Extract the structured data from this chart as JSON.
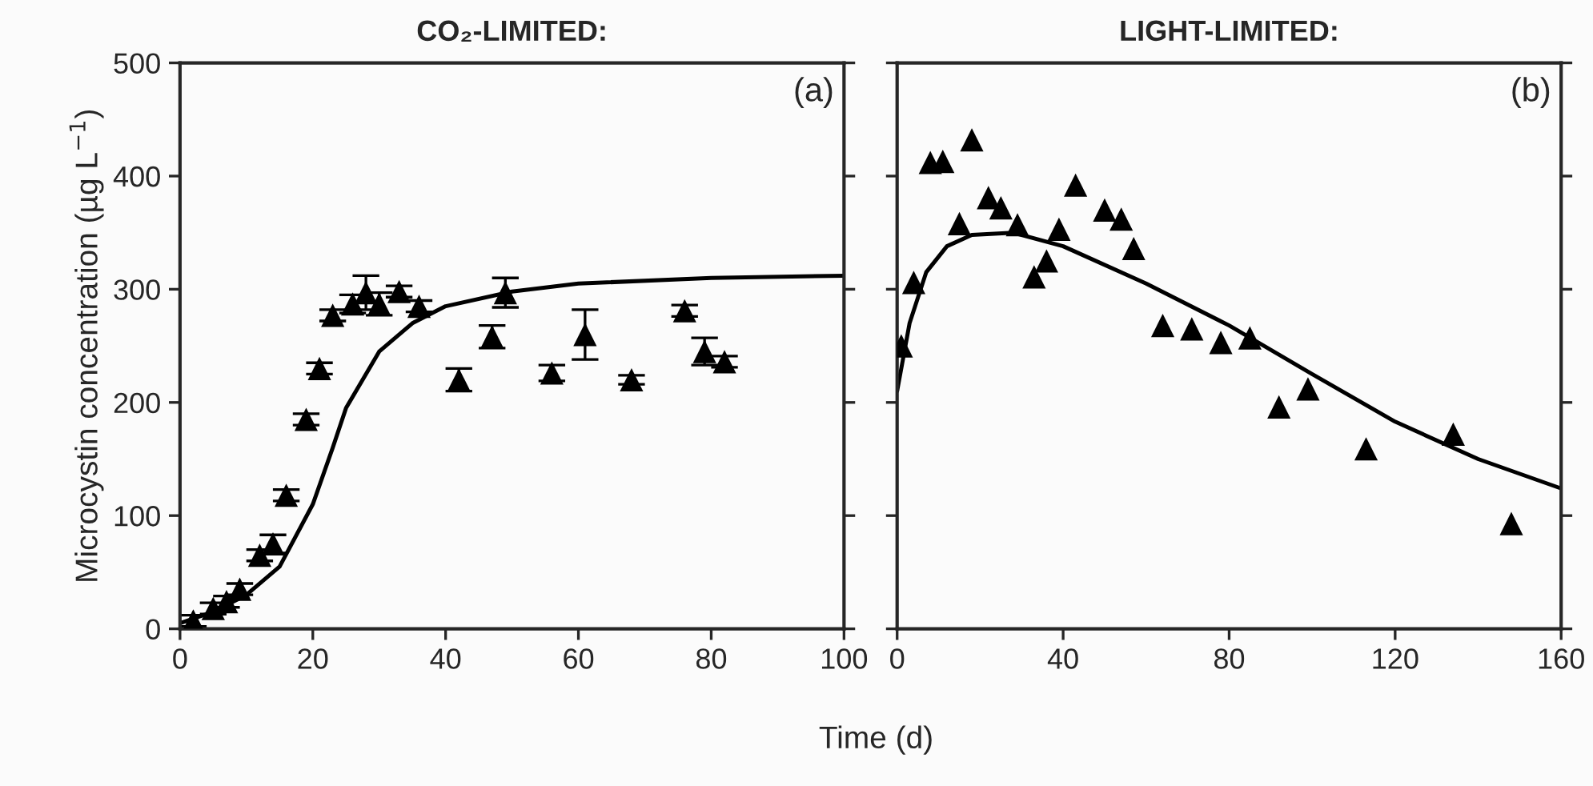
{
  "chart_data": [
    {
      "type": "scatter",
      "title": "CO₂-LIMITED:",
      "ylabel": "Microcystin concentration (µg L$^{−1}$)",
      "xlabel": "Time (d)",
      "annotations": [
        "(a)"
      ],
      "xlim": [
        0,
        100
      ],
      "xticks": [
        0,
        20,
        40,
        60,
        80,
        100
      ],
      "ylim": [
        0,
        500
      ],
      "yticks": [
        0,
        100,
        200,
        300,
        400,
        500
      ],
      "grid": false,
      "marker": "triangle",
      "series": [
        {
          "color": "#000000",
          "x": [
            2,
            5,
            7,
            9,
            12,
            14,
            16,
            19,
            21,
            23,
            26,
            28,
            30,
            33,
            36,
            42,
            47,
            49,
            56,
            61,
            68,
            76,
            79,
            82
          ],
          "values": [
            7,
            18,
            24,
            35,
            65,
            75,
            118,
            185,
            230,
            277,
            287,
            297,
            287,
            298,
            285,
            220,
            258,
            297,
            226,
            260,
            220,
            281,
            245,
            236
          ],
          "errors": [
            5,
            5,
            5,
            5,
            5,
            8,
            5,
            5,
            5,
            5,
            8,
            15,
            10,
            5,
            5,
            10,
            10,
            13,
            7,
            22,
            4,
            5,
            12,
            5
          ]
        },
        {
          "type": "line",
          "color": "#000000",
          "marker": "none",
          "x": [
            0,
            5,
            10,
            15,
            20,
            23,
            25,
            30,
            35,
            40,
            50,
            60,
            80,
            100
          ],
          "values": [
            5,
            15,
            30,
            55,
            110,
            160,
            195,
            245,
            270,
            285,
            298,
            305,
            310,
            312
          ]
        }
      ]
    },
    {
      "type": "scatter",
      "title": "LIGHT-LIMITED:",
      "annotations": [
        "(b)"
      ],
      "xlim": [
        0,
        160
      ],
      "xticks": [
        0,
        40,
        80,
        120,
        160
      ],
      "ylim": [
        0,
        500
      ],
      "yticks": [
        0,
        100,
        200,
        300,
        400,
        500
      ],
      "tick_labels": "x",
      "grid": false,
      "marker": "triangle",
      "series": [
        {
          "color": "#000000",
          "x": [
            1,
            4,
            8,
            11,
            15,
            18,
            22,
            25,
            29,
            33,
            36,
            39,
            43,
            50,
            54,
            57,
            64,
            71,
            78,
            85,
            92,
            99,
            113,
            134,
            148
          ],
          "values": [
            250,
            306,
            412,
            413,
            358,
            432,
            381,
            372,
            357,
            311,
            325,
            353,
            392,
            370,
            362,
            336,
            268,
            265,
            253,
            257,
            196,
            212,
            159,
            172,
            93
          ]
        },
        {
          "type": "line",
          "color": "#000000",
          "marker": "none",
          "x": [
            0,
            3,
            7,
            12,
            18,
            28,
            40,
            60,
            80,
            100,
            120,
            140,
            160
          ],
          "values": [
            210,
            270,
            315,
            338,
            348,
            350,
            338,
            305,
            268,
            225,
            183,
            150,
            124
          ]
        }
      ]
    }
  ]
}
